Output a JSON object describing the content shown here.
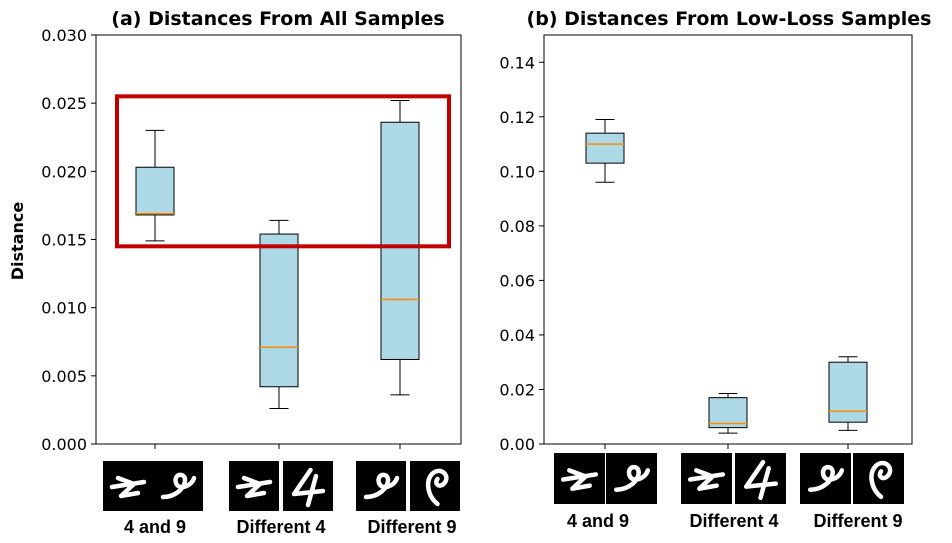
{
  "chart_data": [
    {
      "type": "box",
      "title": "(a) Distances From All Samples",
      "ylabel": "Distance",
      "ylim": [
        0,
        0.03
      ],
      "yticks": [
        "0.000",
        "0.005",
        "0.010",
        "0.015",
        "0.020",
        "0.025",
        "0.030"
      ],
      "categories": [
        "4 and 9",
        "Different 4",
        "Different 9"
      ],
      "boxes": [
        {
          "whisker_low": 0.0149,
          "q1": 0.0168,
          "median": 0.0169,
          "q3": 0.0203,
          "whisker_high": 0.023
        },
        {
          "whisker_low": 0.0026,
          "q1": 0.0042,
          "median": 0.0071,
          "q3": 0.0154,
          "whisker_high": 0.0164
        },
        {
          "whisker_low": 0.0036,
          "q1": 0.0062,
          "median": 0.0106,
          "q3": 0.0236,
          "whisker_high": 0.0252
        }
      ],
      "highlight": {
        "y_from": 0.0145,
        "y_to": 0.0255,
        "color": "#c00000"
      }
    },
    {
      "type": "box",
      "title": "(b) Distances From Low-Loss Samples",
      "ylabel": "",
      "ylim": [
        0,
        0.15
      ],
      "yticks": [
        "0.00",
        "0.02",
        "0.04",
        "0.06",
        "0.08",
        "0.10",
        "0.12",
        "0.14"
      ],
      "categories": [
        "4 and 9",
        "Different 4",
        "Different 9"
      ],
      "boxes": [
        {
          "whisker_low": 0.096,
          "q1": 0.103,
          "median": 0.11,
          "q3": 0.114,
          "whisker_high": 0.119
        },
        {
          "whisker_low": 0.004,
          "q1": 0.006,
          "median": 0.0075,
          "q3": 0.017,
          "whisker_high": 0.0185
        },
        {
          "whisker_low": 0.005,
          "q1": 0.008,
          "median": 0.012,
          "q3": 0.03,
          "whisker_high": 0.032
        }
      ]
    }
  ],
  "colors": {
    "box_fill": "#add8e6",
    "median": "#ff8c00",
    "edge": "#000000",
    "highlight": "#c00000"
  },
  "thumbnails": [
    [
      [
        "digit-4-icon",
        "digit-9-icon"
      ],
      [
        "digit-4-icon",
        "digit-4-alt-icon"
      ],
      [
        "digit-9-icon",
        "digit-9-alt-icon"
      ]
    ],
    [
      [
        "digit-4-icon",
        "digit-9-icon"
      ],
      [
        "digit-4-icon",
        "digit-4-alt-icon"
      ],
      [
        "digit-9-icon",
        "digit-9-alt-icon"
      ]
    ]
  ]
}
